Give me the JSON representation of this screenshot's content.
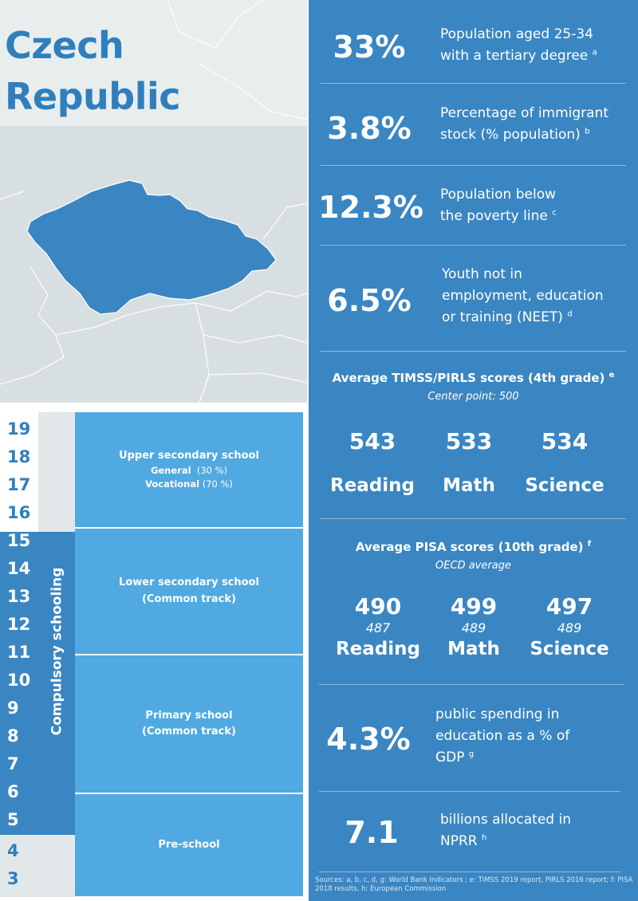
{
  "country": {
    "title_line1": "Czech",
    "title_line2": "Republic"
  },
  "colors": {
    "accent": "#3a86c2",
    "school_block": "#50a9e0",
    "title": "#2f7fbd",
    "map_land": "#3a86c2",
    "map_bg": "#d8dfe1"
  },
  "education_ladder": {
    "ages": [
      "19",
      "18",
      "17",
      "16",
      "15",
      "14",
      "13",
      "12",
      "11",
      "10",
      "9",
      "8",
      "7",
      "6",
      "5",
      "4",
      "3"
    ],
    "compulsory_label": "Compulsory schooling",
    "upper_secondary": {
      "name": "Upper secondary school",
      "general_label": "General",
      "general_pct": "(30 %)",
      "vocational_label": "Vocational",
      "vocational_pct": "(70 %)"
    },
    "lower_secondary": {
      "name_line1": "Lower secondary school",
      "name_line2": "(Common track)"
    },
    "primary": {
      "name_line1": "Primary school",
      "name_line2": "(Common track)"
    },
    "preschool": {
      "name": "Pre-school"
    }
  },
  "stats": [
    {
      "value": "33%",
      "line1": "Population aged 25-34",
      "line2": "with a tertiary degree",
      "note": "a"
    },
    {
      "value": "3.8%",
      "line1": "Percentage of immigrant",
      "line2": "stock (% population)",
      "note": "b"
    },
    {
      "value": "12.3%",
      "line1": "Population below",
      "line2": "the poverty line",
      "note": "c"
    },
    {
      "value": "6.5%",
      "line1": "Youth not in",
      "line2": "employment, education",
      "line3": "or training (NEET)",
      "note": "d"
    }
  ],
  "timss": {
    "heading": "Average TIMSS/PIRLS scores (4th grade)",
    "note": "e",
    "subheading": "Center point: 500",
    "scores": [
      {
        "value": "543",
        "label": "Reading"
      },
      {
        "value": "533",
        "label": "Math"
      },
      {
        "value": "534",
        "label": "Science"
      }
    ]
  },
  "pisa": {
    "heading": "Average PISA scores (10th grade)",
    "note": "f",
    "subheading": "OECD average",
    "scores": [
      {
        "value": "490",
        "average": "487",
        "label": "Reading"
      },
      {
        "value": "499",
        "average": "489",
        "label": "Math"
      },
      {
        "value": "497",
        "average": "489",
        "label": "Science"
      }
    ]
  },
  "spending": {
    "value": "4.3%",
    "line1": "public spending in",
    "line2": "education as a % of",
    "line3": "GDP",
    "note": "g"
  },
  "nprr": {
    "value": "7.1",
    "line1": "billions allocated in",
    "line2": "NPRR",
    "note": "h"
  },
  "sources": "Sources: a, b, c, d, g: World Bank Indicators ; e: TIMSS 2019 report, PIRLS 2016 report; f: PISA 2018 results, h: European Commission"
}
